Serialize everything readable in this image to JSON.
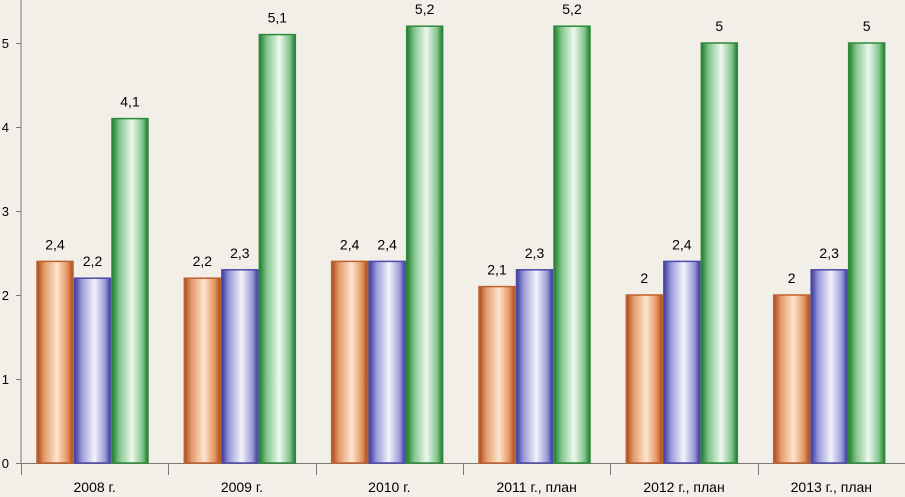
{
  "chart_data": {
    "type": "bar",
    "categories": [
      "2008 г.",
      "2009 г.",
      "2010 г.",
      "2011 г., план",
      "2012 г., план",
      "2013 г., план"
    ],
    "series": [
      {
        "values": [
          2.4,
          2.2,
          2.4,
          2.1,
          2.0,
          2.0
        ],
        "labels": [
          "2,4",
          "2,2",
          "2,4",
          "2,1",
          "2",
          "2"
        ],
        "color": "#c0602c"
      },
      {
        "values": [
          2.2,
          2.3,
          2.4,
          2.3,
          2.4,
          2.3
        ],
        "labels": [
          "2,2",
          "2,3",
          "2,4",
          "2,3",
          "2,4",
          "2,3"
        ],
        "color": "#4a4aa8"
      },
      {
        "values": [
          4.1,
          5.1,
          5.2,
          5.2,
          5.0,
          5.0
        ],
        "labels": [
          "4,1",
          "5,1",
          "5,2",
          "5,2",
          "5",
          "5"
        ],
        "color": "#2e8a3a"
      }
    ],
    "y_ticks": [
      "0",
      "1",
      "2",
      "3",
      "4",
      "5"
    ],
    "ylim": [
      0,
      5.5
    ],
    "grid": false,
    "legend": "none",
    "title": "",
    "xlabel": "",
    "ylabel": ""
  }
}
